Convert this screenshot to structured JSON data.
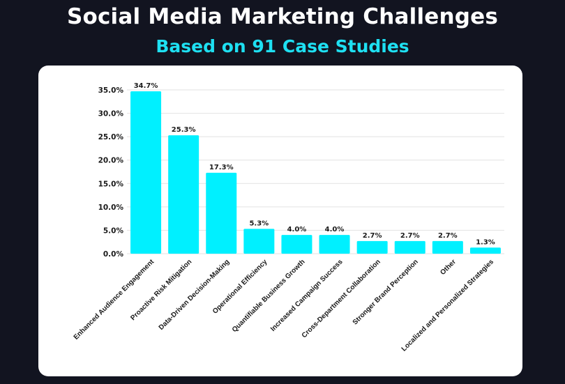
{
  "header": {
    "title": "Social Media Marketing Challenges",
    "subtitle": "Based on 91 Case Studies"
  },
  "colors": {
    "background": "#121420",
    "accent": "#1ee0f2",
    "bar": "#00f0ff",
    "card": "#ffffff",
    "grid": "#e2e2e2",
    "text": "#1a1a1a"
  },
  "chart_data": {
    "type": "bar",
    "title": "Social Media Marketing Challenges",
    "subtitle": "Based on 91 Case Studies",
    "xlabel": "",
    "ylabel": "",
    "ylim": [
      0,
      35
    ],
    "grid": true,
    "y_ticks": [
      0,
      5,
      10,
      15,
      20,
      25,
      30,
      35
    ],
    "y_tick_labels": [
      "0.0%",
      "5.0%",
      "10.0%",
      "15.0%",
      "20.0%",
      "25.0%",
      "30.0%",
      "35.0%"
    ],
    "categories": [
      "Enhanced Audience Engagement",
      "Proactive Risk Mitigation",
      "Data-Driven Decision-Making",
      "Operational Efficiency",
      "Quantifiable Business Growth",
      "Increased Campaign Success",
      "Cross-Department Collaboration",
      "Stronger Brand Perception",
      "Other",
      "Localized and Personalized Strategies"
    ],
    "values": [
      34.7,
      25.3,
      17.3,
      5.3,
      4.0,
      4.0,
      2.7,
      2.7,
      2.7,
      1.3
    ],
    "value_labels": [
      "34.7%",
      "25.3%",
      "17.3%",
      "5.3%",
      "4.0%",
      "4.0%",
      "2.7%",
      "2.7%",
      "2.7%",
      "1.3%"
    ]
  }
}
